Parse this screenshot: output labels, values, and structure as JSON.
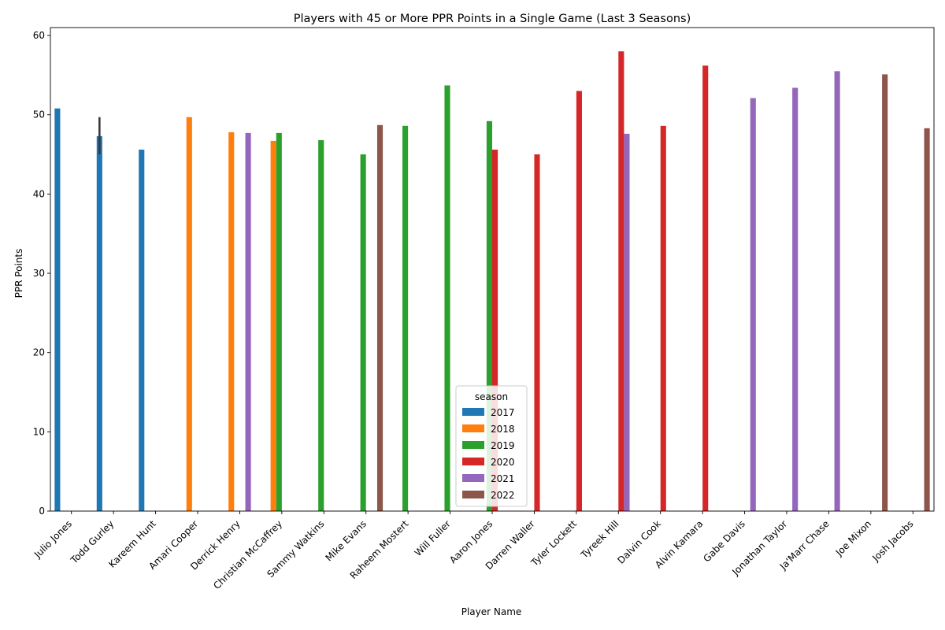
{
  "chart_data": {
    "type": "bar",
    "title": "Players with 45 or More PPR Points in a Single Game (Last 3 Seasons)",
    "xlabel": "Player Name",
    "ylabel": "PPR Points",
    "ylim": [
      0,
      61
    ],
    "yticks": [
      0,
      10,
      20,
      30,
      40,
      50,
      60
    ],
    "grid": false,
    "legend": {
      "title": "season",
      "placement": "lower-center",
      "entries": [
        {
          "label": "2017",
          "color": "#1f77b4"
        },
        {
          "label": "2018",
          "color": "#ff7f0e"
        },
        {
          "label": "2019",
          "color": "#2ca02c"
        },
        {
          "label": "2020",
          "color": "#d62728"
        },
        {
          "label": "2021",
          "color": "#9467bd"
        },
        {
          "label": "2022",
          "color": "#8c564b"
        }
      ]
    },
    "categories": [
      "Julio Jones",
      "Todd Gurley",
      "Kareem Hunt",
      "Amari Cooper",
      "Derrick Henry",
      "Christian McCaffrey",
      "Sammy Watkins",
      "Mike Evans",
      "Raheem Mostert",
      "Will Fuller",
      "Aaron Jones",
      "Darren Waller",
      "Tyler Lockett",
      "Tyreek Hill",
      "Dalvin Cook",
      "Alvin Kamara",
      "Gabe Davis",
      "Jonathan Taylor",
      "Ja'Marr Chase",
      "Joe Mixon",
      "Josh Jacobs"
    ],
    "series": [
      {
        "name": "2017",
        "values": [
          50.8,
          47.3,
          45.6,
          null,
          null,
          null,
          null,
          null,
          null,
          null,
          null,
          null,
          null,
          null,
          null,
          null,
          null,
          null,
          null,
          null,
          null
        ],
        "error": [
          null,
          [
            45.0,
            49.7
          ],
          null,
          null,
          null,
          null,
          null,
          null,
          null,
          null,
          null,
          null,
          null,
          null,
          null,
          null,
          null,
          null,
          null,
          null,
          null
        ]
      },
      {
        "name": "2018",
        "values": [
          null,
          null,
          null,
          49.7,
          47.8,
          46.7,
          null,
          null,
          null,
          null,
          null,
          null,
          null,
          null,
          null,
          null,
          null,
          null,
          null,
          null,
          null
        ]
      },
      {
        "name": "2019",
        "values": [
          null,
          null,
          null,
          null,
          null,
          47.7,
          46.8,
          45.0,
          48.6,
          53.7,
          49.2,
          null,
          null,
          null,
          null,
          null,
          null,
          null,
          null,
          null,
          null
        ]
      },
      {
        "name": "2020",
        "values": [
          null,
          null,
          null,
          null,
          null,
          null,
          null,
          null,
          null,
          null,
          45.6,
          45.0,
          53.0,
          58.0,
          48.6,
          56.2,
          null,
          null,
          null,
          null,
          null
        ]
      },
      {
        "name": "2021",
        "values": [
          null,
          null,
          null,
          null,
          47.7,
          null,
          null,
          null,
          null,
          null,
          null,
          null,
          null,
          47.6,
          null,
          null,
          52.1,
          53.4,
          55.5,
          null,
          null
        ]
      },
      {
        "name": "2022",
        "values": [
          null,
          null,
          null,
          null,
          null,
          null,
          null,
          48.7,
          null,
          null,
          null,
          null,
          null,
          null,
          null,
          null,
          null,
          null,
          null,
          55.1,
          48.3
        ]
      }
    ]
  }
}
